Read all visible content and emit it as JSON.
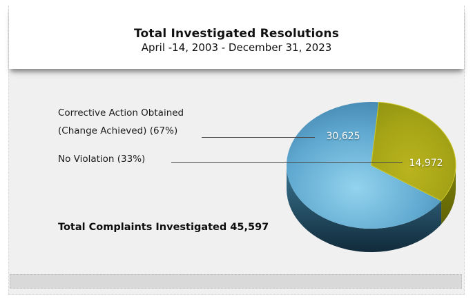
{
  "window": {
    "background": "#ffffff",
    "panel_background": "#f0f0f0",
    "footer_bar_color": "#d9d9d9"
  },
  "header": {
    "title": "Total Investigated Resolutions",
    "subtitle": "April -14, 2003 - December 31, 2023"
  },
  "chart_data": {
    "type": "pie",
    "title": "Total Investigated Resolutions",
    "subtitle": "April -14, 2003 - December 31, 2023",
    "style": "3d-pie",
    "start_angle_deg": -34,
    "legend_position": "left-callouts",
    "total": 45597,
    "slices": [
      {
        "name": "Corrective Action Obtained (Change Achieved)",
        "callout_line1": "Corrective Action Obtained",
        "callout_line2": "(Change Achieved) (67%)",
        "percent": 67,
        "value": 30625,
        "value_label": "30,625",
        "colors": {
          "top_center": "#93d3ee",
          "top_mid": "#5fa8cf",
          "top_edge": "#3a7ba6",
          "side_top": "#3a7591",
          "side_bottom": "#112b3b"
        }
      },
      {
        "name": "No Violation",
        "callout_line1": "No Violation (33%)",
        "percent": 33,
        "value": 14972,
        "value_label": "14,972",
        "colors": {
          "top_center": "#b9b41e",
          "top_mid": "#a7a517",
          "top_edge": "#8e9110",
          "side_top": "#7c7e08",
          "side_bottom": "#606305",
          "edge": "#cdc92a"
        }
      }
    ],
    "footer_label": "Total Complaints Investigated 45,597"
  },
  "annotations": {
    "total_text": "Total Complaints Investigated 45,597",
    "leader_line_color": "#4a4a4a",
    "value_text_color": "#ffffff"
  }
}
